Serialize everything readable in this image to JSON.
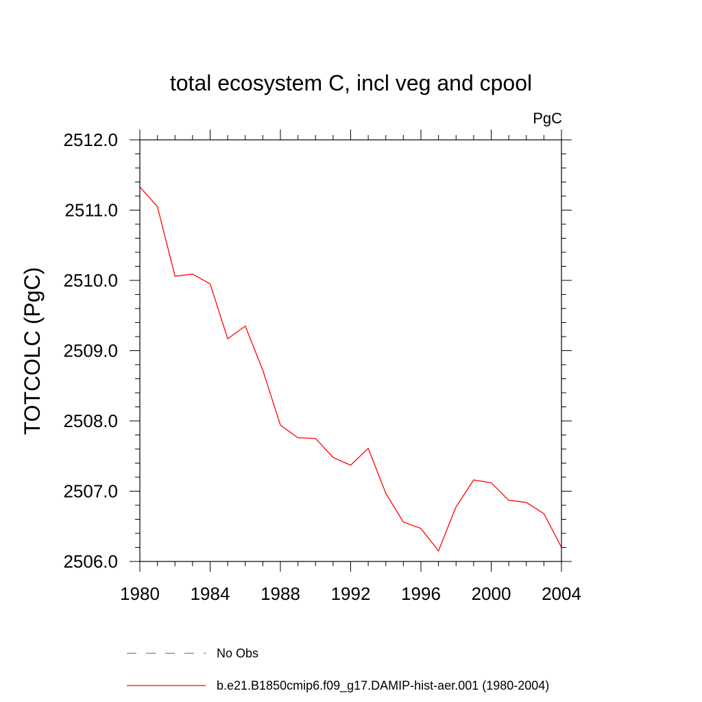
{
  "chart_data": {
    "type": "line",
    "title": "total ecosystem C, incl veg and cpool",
    "units_label": "PgC",
    "ylabel": "TOTCOLC  (PgC)",
    "xlabel": "",
    "xlim": [
      1980,
      2004
    ],
    "ylim": [
      2506.0,
      2512.0
    ],
    "x_ticks": [
      1980,
      1984,
      1988,
      1992,
      1996,
      2000,
      2004
    ],
    "x_tick_labels": [
      "1980",
      "1984",
      "1988",
      "1992",
      "1996",
      "2000",
      "2004"
    ],
    "y_ticks": [
      2506,
      2507,
      2508,
      2509,
      2510,
      2511,
      2512
    ],
    "y_tick_labels": [
      "2506.0",
      "2507.0",
      "2508.0",
      "2509.0",
      "2510.0",
      "2511.0",
      "2512.0"
    ],
    "grid": false,
    "legend_position": "bottom",
    "series": [
      {
        "name": "No Obs",
        "color": "#7b6fc9",
        "dash": "dashed",
        "x": [],
        "y": []
      },
      {
        "name": "b.e21.B1850cmip6.f09_g17.DAMIP-hist-aer.001 (1980-2004)",
        "color": "#ff0000",
        "dash": "solid",
        "x": [
          1980,
          1981,
          1982,
          1983,
          1984,
          1985,
          1986,
          1987,
          1988,
          1989,
          1990,
          1991,
          1992,
          1993,
          1994,
          1995,
          1996,
          1997,
          1998,
          1999,
          2000,
          2001,
          2002,
          2003,
          2004
        ],
        "y": [
          2511.33,
          2511.05,
          2510.06,
          2510.09,
          2509.95,
          2509.17,
          2509.35,
          2508.72,
          2507.94,
          2507.76,
          2507.75,
          2507.48,
          2507.37,
          2507.61,
          2506.97,
          2506.56,
          2506.47,
          2506.15,
          2506.78,
          2507.16,
          2507.12,
          2506.87,
          2506.84,
          2506.68,
          2506.2
        ]
      }
    ]
  }
}
